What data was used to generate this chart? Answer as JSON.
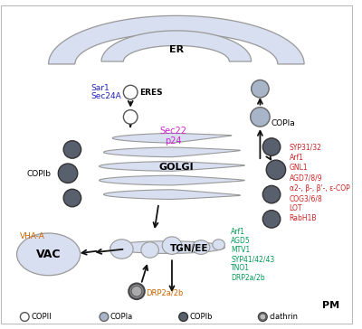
{
  "bg_color": "#ffffff",
  "er_color": "#d8dff0",
  "golgi_color": "#d8dff0",
  "tgn_color": "#d8dff0",
  "vac_color": "#d8dff0",
  "copii_color": "#ffffff",
  "copia_color": "#a8b4c8",
  "copib_color": "#585f6d",
  "clathrin_color": "#888890",
  "border_ec": "#999999",
  "arrow_color": "#222222",
  "label_er": "ER",
  "label_golgi": "GOLGI",
  "label_tgn": "TGN/EE",
  "label_vac": "VAC",
  "label_eres": "ERES",
  "label_copia_right": "COPIa",
  "label_copib_left": "COPIb",
  "label_pm": "PM",
  "label_vha": "VHA-A",
  "label_drp": "DRP2a/2b",
  "label_sec22": "Sec22",
  "label_p24": "p24",
  "blue_labels": [
    "Sar1",
    "Sec24A"
  ],
  "red_labels": [
    "SYP31/32",
    "Arf1",
    "GNL1",
    "AGD7/8/9",
    "α2-, β-, β'-, ε-COP",
    "COG3/6/8",
    "LOT",
    "RabH1B"
  ],
  "green_labels": [
    "Arf1",
    "AGD5",
    "MTV1",
    "SYP41/42/43",
    "TNO1",
    "DRP2a/2b"
  ],
  "legend_labels": [
    "COPII",
    "COPIa",
    "COPIb",
    "clathrin"
  ],
  "blue_color": "#2222bb",
  "red_color": "#cc2222",
  "green_color": "#009955",
  "magenta_color": "#cc22cc",
  "orange_color": "#cc6600"
}
